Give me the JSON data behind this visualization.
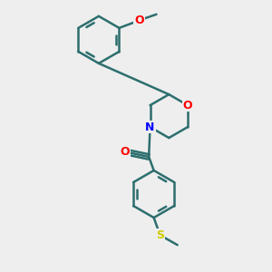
{
  "background_color": "#eeeeee",
  "bond_color": "#2d6e6e",
  "atom_colors": {
    "O": "#ff0000",
    "N": "#0000ff",
    "S": "#cccc00",
    "C": "#000000"
  },
  "bond_width": 1.8,
  "figsize": [
    3.0,
    3.0
  ],
  "dpi": 100
}
